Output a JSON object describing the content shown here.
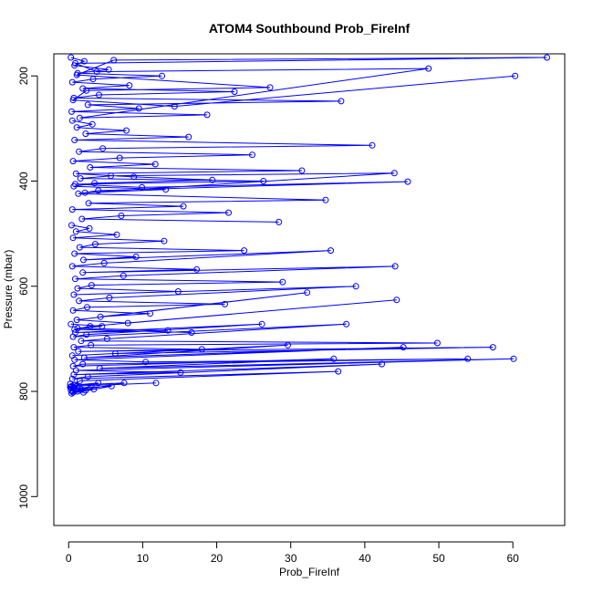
{
  "chart_data": {
    "type": "line",
    "title": "ATOM4 Southbound Prob_FireInf",
    "xlabel": "Prob_FireInf",
    "ylabel": "Pressure (mbar)",
    "xlim": [
      -2,
      67
    ],
    "ylim": [
      1055,
      158
    ],
    "y_reversed": true,
    "x_ticks": [
      0,
      10,
      20,
      30,
      40,
      50,
      60
    ],
    "y_ticks": [
      200,
      400,
      600,
      800,
      1000
    ],
    "grid": false,
    "legend": "none",
    "marker": "open-circle",
    "color": "#0000ff",
    "series": [
      {
        "x": [
          0.3,
          2.1,
          0.8,
          5.4,
          1.2,
          12.6,
          3.3,
          0.5,
          8.2,
          1.9,
          22.4,
          4.1,
          0.7,
          36.8,
          2.6,
          9.5,
          0.4,
          18.7,
          1.5,
          48.6,
          3.8,
          0.9,
          64.6,
          6.1,
          1.1,
          27.2,
          2.4,
          0.6,
          14.3,
          60.3
        ],
        "y": [
          165,
          172,
          180,
          188,
          195,
          200,
          206,
          212,
          218,
          224,
          230,
          236,
          242,
          248,
          255,
          262,
          268,
          274,
          280,
          186,
          192,
          176,
          165,
          170,
          198,
          222,
          228,
          246,
          258,
          200
        ]
      },
      {
        "x": [
          0.5,
          3.2,
          1.1,
          7.8,
          2.3,
          16.2,
          0.8,
          41.0,
          4.6,
          1.4,
          24.8,
          6.9,
          0.6,
          11.7,
          2.9,
          31.5,
          1.0,
          8.8,
          19.4,
          3.5,
          0.7,
          13.1,
          2.2,
          44.0,
          5.7,
          1.6,
          26.3,
          0.9,
          9.9,
          45.8,
          4.0,
          1.3,
          34.7,
          2.7,
          15.5,
          0.5,
          21.6,
          7.1,
          1.8,
          28.4
        ],
        "y": [
          285,
          292,
          298,
          304,
          310,
          316,
          322,
          332,
          338,
          344,
          350,
          356,
          362,
          368,
          374,
          380,
          386,
          392,
          398,
          404,
          410,
          416,
          422,
          385,
          390,
          395,
          400,
          406,
          412,
          401,
          418,
          424,
          436,
          442,
          448,
          454,
          460,
          466,
          472,
          478
        ]
      },
      {
        "x": [
          0.4,
          2.8,
          1.0,
          6.5,
          0.6,
          12.9,
          3.6,
          1.5,
          23.7,
          0.8,
          9.1,
          2.0,
          35.4,
          4.8,
          0.5,
          17.3,
          1.9,
          44.1,
          7.4,
          0.9,
          28.9,
          3.1,
          1.2,
          14.8,
          0.7,
          38.8,
          5.5,
          1.4,
          21.1,
          2.5,
          0.6,
          11.0,
          4.3,
          32.2,
          1.1,
          8.0,
          44.3,
          2.9,
          0.8,
          16.6
        ],
        "y": [
          484,
          490,
          496,
          502,
          508,
          514,
          520,
          526,
          532,
          538,
          544,
          550,
          532,
          556,
          562,
          568,
          574,
          562,
          580,
          586,
          592,
          598,
          604,
          610,
          616,
          600,
          622,
          628,
          634,
          640,
          646,
          652,
          658,
          612,
          664,
          670,
          626,
          676,
          682,
          688
        ]
      },
      {
        "x": [
          0.3,
          4.5,
          1.2,
          13.4,
          0.9,
          26.1,
          2.4,
          0.6,
          37.5,
          5.2,
          1.7,
          49.8,
          3.0,
          0.7,
          18.0,
          1.3,
          57.3,
          6.3,
          0.5,
          29.6,
          2.1,
          45.2,
          0.8,
          10.4,
          53.9,
          1.9,
          0.6,
          35.8,
          4.2,
          60.1,
          1.0,
          15.1,
          0.7,
          42.3,
          2.6,
          0.5,
          36.4,
          1.5,
          0.4,
          11.8
        ],
        "y": [
          672,
          676,
          680,
          684,
          688,
          672,
          692,
          696,
          672,
          700,
          704,
          708,
          712,
          716,
          720,
          724,
          716,
          728,
          732,
          712,
          736,
          716,
          740,
          744,
          738,
          748,
          752,
          738,
          756,
          738,
          760,
          764,
          768,
          748,
          772,
          776,
          762,
          780,
          790,
          784
        ]
      },
      {
        "x": [
          0.2,
          1.1,
          0.4,
          2.3,
          0.6,
          4.0,
          0.9,
          0.3,
          1.7,
          0.5,
          7.5,
          0.8,
          0.2,
          3.4,
          1.2,
          0.4,
          5.8,
          0.7,
          0.3,
          2.0
        ],
        "y": [
          786,
          790,
          794,
          798,
          802,
          784,
          788,
          792,
          796,
          800,
          784,
          788,
          792,
          796,
          800,
          804,
          790,
          794,
          798,
          802
        ]
      }
    ]
  }
}
